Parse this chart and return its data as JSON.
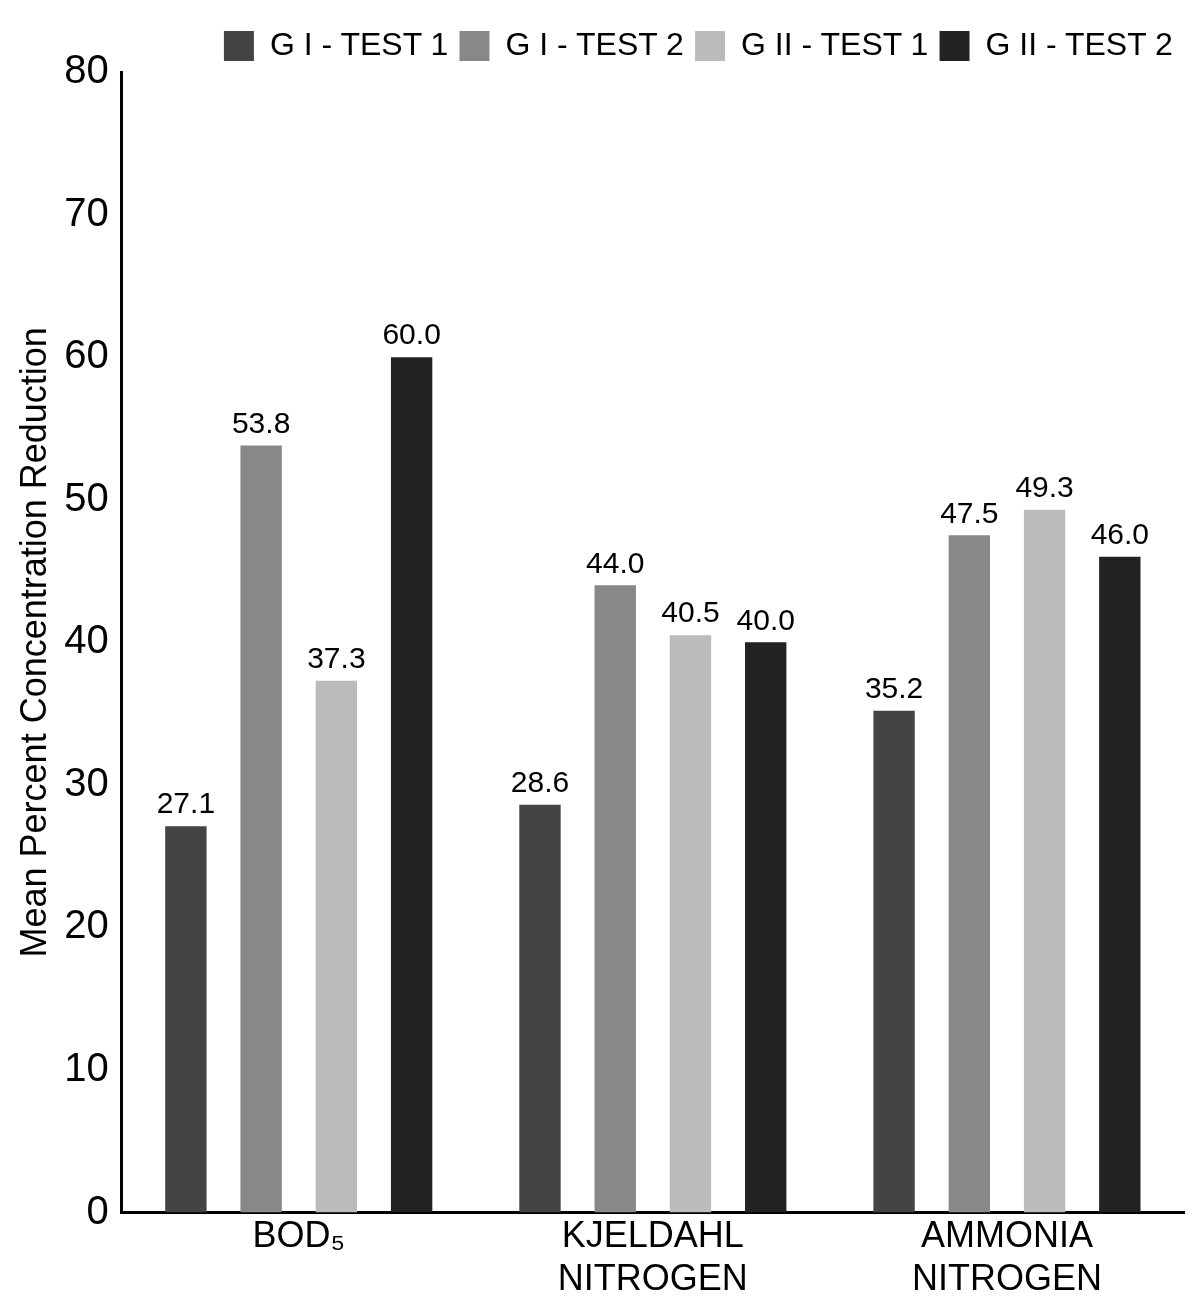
{
  "chart_data": {
    "type": "bar",
    "ylabel": "Mean Percent Concentration Reduction",
    "categories": [
      "BOD₅",
      "KJELDAHL NITROGEN",
      "AMMONIA NITROGEN"
    ],
    "series": [
      {
        "name": "G I - TEST 1",
        "color": "#444444",
        "values": [
          27.1,
          28.6,
          35.2
        ],
        "value_labels": [
          "27.1",
          "28.6",
          "35.2"
        ]
      },
      {
        "name": "G I - TEST 2",
        "color": "#888888",
        "values": [
          53.8,
          44.0,
          47.5
        ],
        "value_labels": [
          "53.8",
          "44.0",
          "47.5"
        ]
      },
      {
        "name": "G II - TEST 1",
        "color": "#bbbbbb",
        "values": [
          37.3,
          40.5,
          49.3
        ],
        "value_labels": [
          "37.3",
          "40.5",
          "49.3"
        ]
      },
      {
        "name": "G II - TEST 2",
        "color": "#222222",
        "values": [
          60.0,
          40.0,
          46.0
        ],
        "value_labels": [
          "60.0",
          "40.0",
          "46.0"
        ]
      }
    ],
    "ylim": [
      0,
      80
    ],
    "yticks": [
      0,
      10,
      20,
      30,
      40,
      50,
      60,
      70,
      80
    ],
    "grid": false,
    "legend": "top right"
  }
}
